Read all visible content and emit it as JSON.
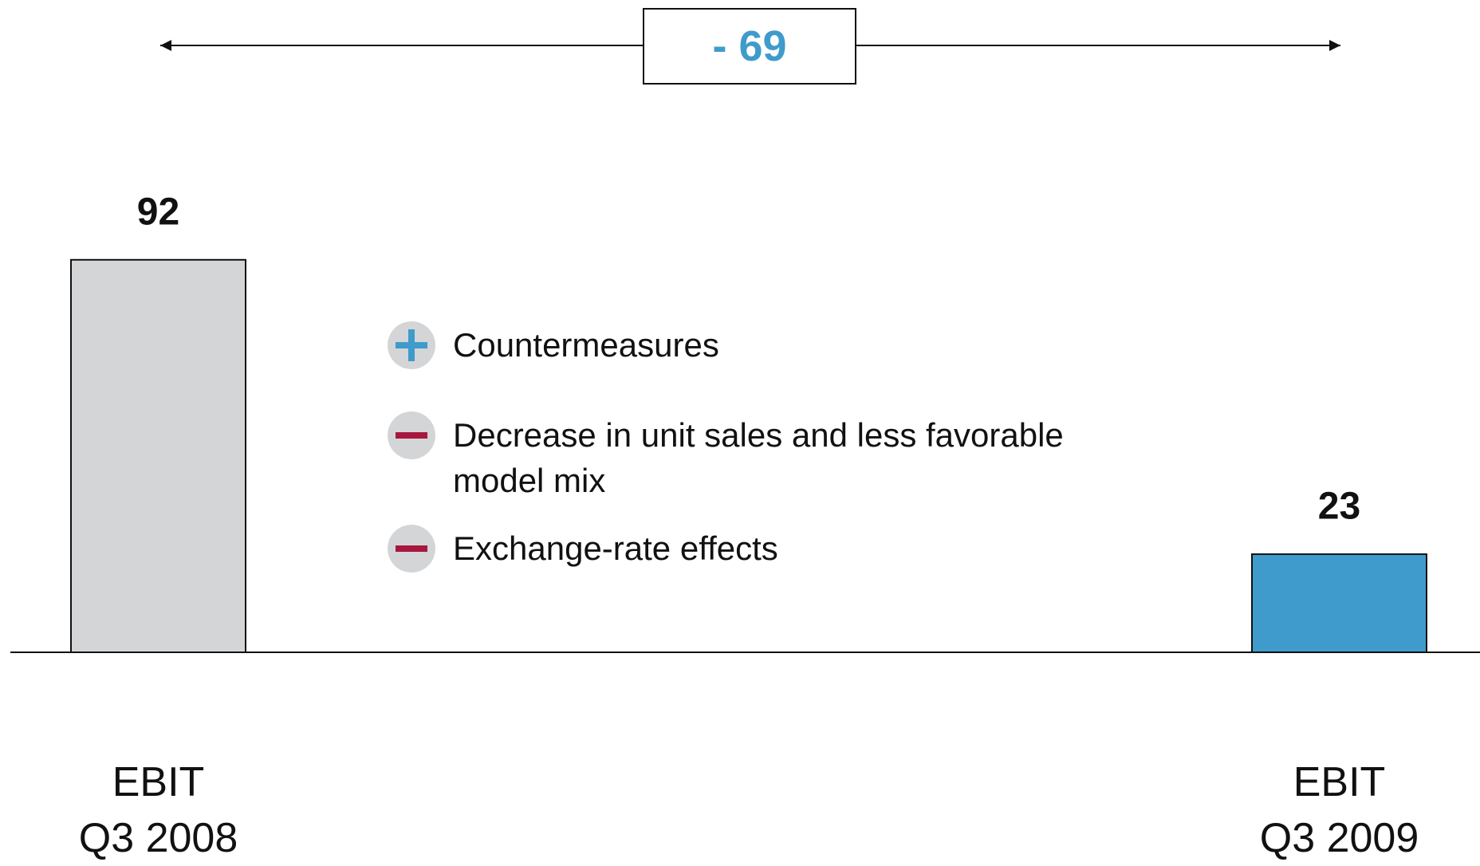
{
  "chart_data": {
    "type": "bar",
    "categories": [
      "EBIT\nQ3 2008",
      "EBIT\nQ3 2009"
    ],
    "values": [
      92,
      23
    ],
    "colors": [
      "#d4d5d7",
      "#3f9bcb"
    ],
    "annotation": "- 69",
    "factors": [
      {
        "effect": "positive",
        "text": "Countermeasures"
      },
      {
        "effect": "negative",
        "text": "Decrease in unit sales and less favorable\nmodel mix"
      },
      {
        "effect": "negative",
        "text": "Exchange-rate effects"
      }
    ]
  }
}
